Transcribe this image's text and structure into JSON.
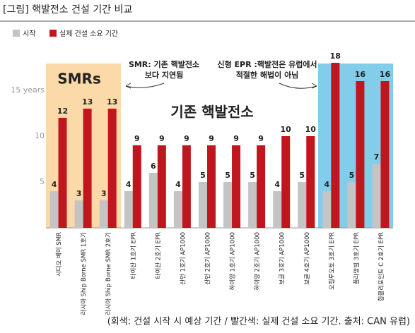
{
  "chart_data": {
    "type": "bar",
    "title": "[그림] 핵발전소 건설 기간 비교",
    "categories": [
      "시디오 베이 SMR",
      "러시아 Ship Borne SMR 1호기",
      "러시아 Ship Borne SMR 2호기",
      "타이산 1호기 EPR",
      "타이산 2호기 EPR",
      "산먼 1호기 AP1000",
      "산먼 2호기 AP1000",
      "하이양 1호기 AP1000",
      "하이양 2호기 AP1000",
      "보글 3호기 AP1000",
      "보글 4호기 AP1000",
      "오킬루오토 3호기 EPR",
      "플라망빌 3호기 EPR",
      "힝클리포인트 C 2호기 EPR"
    ],
    "series": [
      {
        "name": "시작",
        "color": "#c4c4c4",
        "values": [
          4,
          3,
          3,
          4,
          6,
          4,
          5,
          5,
          5,
          4,
          5,
          4,
          5,
          7
        ]
      },
      {
        "name": "실제 건설 소요 기간",
        "color": "#c0161e",
        "values": [
          12,
          13,
          13,
          9,
          9,
          9,
          9,
          9,
          9,
          10,
          10,
          18,
          16,
          16
        ]
      }
    ],
    "ylim": [
      0,
      19
    ],
    "yticks": [
      5,
      10,
      {
        "value": 15,
        "label": "15 years"
      }
    ],
    "grid": false,
    "legend": "top-left",
    "annotations": {
      "smr_group": "SMRs",
      "existing_group": "기존 핵발전소",
      "smr_note": "SMR: 기존 핵발전소\n보다 지연됨",
      "epr_note": "신형 EPR :핵발전은 유럽에서\n적절한 해법이 아님"
    },
    "note": "(회색: 건설 시작 시 예상 기간 / 빨간색: 실제 건설 소요 기간. 출처: CAN 유럽)"
  }
}
